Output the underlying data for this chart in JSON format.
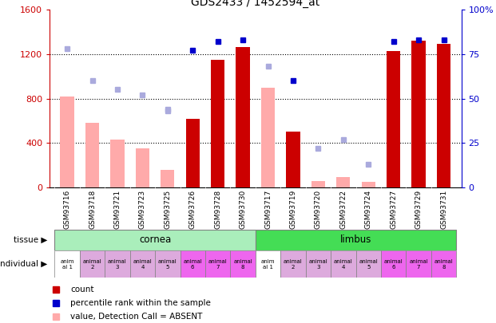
{
  "title": "GDS2433 / 1452594_at",
  "samples": [
    "GSM93716",
    "GSM93718",
    "GSM93721",
    "GSM93723",
    "GSM93725",
    "GSM93726",
    "GSM93728",
    "GSM93730",
    "GSM93717",
    "GSM93719",
    "GSM93720",
    "GSM93722",
    "GSM93724",
    "GSM93727",
    "GSM93729",
    "GSM93731"
  ],
  "count_values": [
    null,
    null,
    null,
    null,
    null,
    620,
    1150,
    1260,
    null,
    500,
    null,
    null,
    null,
    1230,
    1320,
    1290
  ],
  "count_absent": [
    820,
    580,
    430,
    350,
    160,
    null,
    null,
    null,
    900,
    null,
    60,
    90,
    50,
    null,
    null,
    null
  ],
  "percentile_rank": [
    null,
    null,
    null,
    null,
    null,
    77,
    82,
    83,
    null,
    60,
    null,
    null,
    null,
    82,
    83,
    83
  ],
  "percentile_rank_absent": [
    78,
    60,
    55,
    52,
    43,
    null,
    null,
    null,
    68,
    null,
    null,
    null,
    null,
    null,
    null,
    null
  ],
  "rank_absent": [
    null,
    null,
    null,
    null,
    44,
    null,
    null,
    null,
    null,
    null,
    22,
    27,
    13,
    null,
    null,
    null
  ],
  "tissue": [
    "cornea",
    "cornea",
    "cornea",
    "cornea",
    "cornea",
    "cornea",
    "cornea",
    "cornea",
    "limbus",
    "limbus",
    "limbus",
    "limbus",
    "limbus",
    "limbus",
    "limbus",
    "limbus"
  ],
  "individual": [
    "anim\nal 1",
    "animal\n2",
    "animal\n3",
    "animal\n4",
    "animal\n5",
    "animal\n6",
    "animal\n7",
    "animal\n8",
    "anim\nal 1",
    "animal\n2",
    "animal\n3",
    "animal\n4",
    "animal\n5",
    "animal\n6",
    "animal\n7",
    "animal\n8"
  ],
  "ylim_left": [
    0,
    1600
  ],
  "ylim_right": [
    0,
    100
  ],
  "yticks_left": [
    0,
    400,
    800,
    1200,
    1600
  ],
  "ytick_labels_left": [
    "0",
    "400",
    "800",
    "1200",
    "1600"
  ],
  "yticks_right": [
    0,
    25,
    50,
    75,
    100
  ],
  "ytick_labels_right": [
    "0",
    "25",
    "50",
    "75",
    "100%"
  ],
  "bar_width": 0.55,
  "count_color": "#cc0000",
  "absent_value_color": "#ffaaaa",
  "percentile_color": "#0000cc",
  "rank_absent_color": "#aaaadd",
  "cornea_color": "#aaeebb",
  "limbus_color": "#44dd55",
  "individual_white": "#ffffff",
  "individual_light": "#ddaadd",
  "individual_dark": "#dd55dd",
  "xticklabel_bg": "#dddddd",
  "legend_items": [
    "count",
    "percentile rank within the sample",
    "value, Detection Call = ABSENT",
    "rank, Detection Call = ABSENT"
  ],
  "individual_colors": [
    "#ffffff",
    "#ddaadd",
    "#ddaadd",
    "#ddaadd",
    "#ddaadd",
    "#ee66ee",
    "#ee66ee",
    "#ee66ee",
    "#ffffff",
    "#ddaadd",
    "#ddaadd",
    "#ddaadd",
    "#ddaadd",
    "#ee66ee",
    "#ee66ee",
    "#ee66ee"
  ]
}
